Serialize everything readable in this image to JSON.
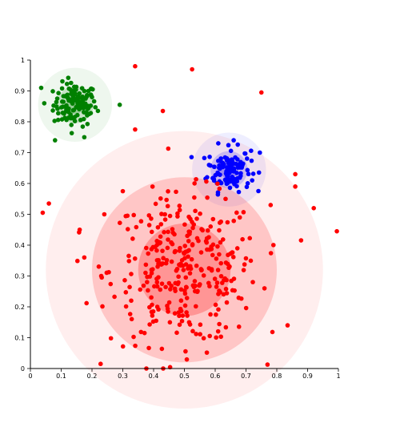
{
  "chart_data": {
    "type": "scatter",
    "title": "",
    "xlabel": "",
    "ylabel": "",
    "xlim": [
      0,
      1
    ],
    "ylim": [
      0,
      1
    ],
    "x_ticks": [
      "0",
      "0.1",
      "0.2",
      "0.3",
      "0.4",
      "0.5",
      "0.6",
      "0.7",
      "0.8",
      "0.9",
      "1"
    ],
    "y_ticks": [
      "0",
      "0.1",
      "0.2",
      "0.3",
      "0.4",
      "0.5",
      "0.6",
      "0.7",
      "0.8",
      "0.9",
      "1"
    ],
    "grid": false,
    "legend": "none",
    "series": [
      {
        "color": "#008000",
        "center": [
          0.145,
          0.855
        ],
        "spread": 0.035,
        "count": 120,
        "density_rings": [
          0.03,
          0.06,
          0.12
        ],
        "points": [
          [
            0.035,
            0.91
          ],
          [
            0.175,
            0.75
          ],
          [
            0.08,
            0.74
          ],
          [
            0.29,
            0.855
          ],
          [
            0.045,
            0.86
          ],
          [
            0.2,
            0.88
          ]
        ]
      },
      {
        "color": "#0000ff",
        "center": [
          0.645,
          0.645
        ],
        "spread": 0.035,
        "count": 120,
        "density_rings": [
          0.03,
          0.06,
          0.12
        ],
        "points": [
          [
            0.745,
            0.7
          ],
          [
            0.61,
            0.73
          ],
          [
            0.58,
            0.66
          ],
          [
            0.72,
            0.61
          ],
          [
            0.66,
            0.74
          ]
        ]
      },
      {
        "color": "#ff0000",
        "center": [
          0.5,
          0.32
        ],
        "spread": 0.12,
        "count": 330,
        "density_rings": [
          0.15,
          0.3,
          0.45
        ],
        "points": [
          [
            0.34,
            0.98
          ],
          [
            0.525,
            0.97
          ],
          [
            0.75,
            0.895
          ],
          [
            0.43,
            0.835
          ],
          [
            0.34,
            0.775
          ],
          [
            0.04,
            0.505
          ],
          [
            0.06,
            0.535
          ],
          [
            0.16,
            0.45
          ],
          [
            0.175,
            0.36
          ],
          [
            0.3,
            0.575
          ],
          [
            0.86,
            0.63
          ],
          [
            0.86,
            0.59
          ],
          [
            0.92,
            0.52
          ],
          [
            0.995,
            0.445
          ],
          [
            0.835,
            0.14
          ],
          [
            0.78,
            0.53
          ],
          [
            0.24,
            0.5
          ],
          [
            0.23,
            0.3
          ],
          [
            0.76,
            0.26
          ]
        ]
      }
    ]
  }
}
